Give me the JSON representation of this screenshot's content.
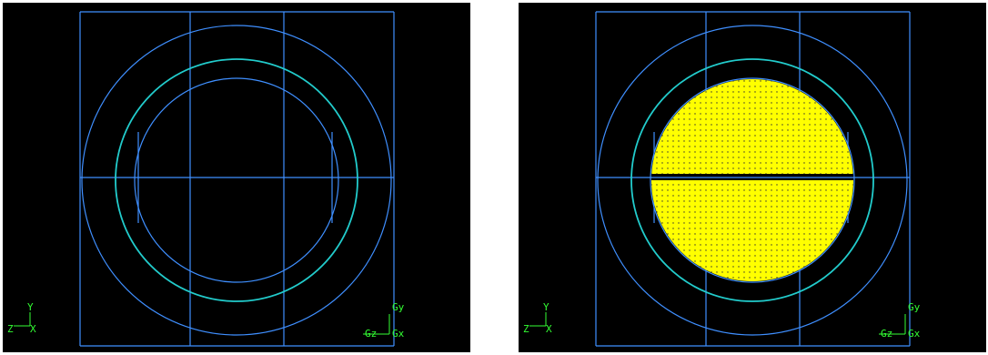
{
  "panels": [
    {
      "axes": {
        "y": "Y",
        "z": "Z",
        "x": "X",
        "gy": "Gy",
        "gz": "Gz",
        "gx": "Gx"
      }
    },
    {
      "axes": {
        "y": "Y",
        "z": "Z",
        "x": "X",
        "gy": "Gy",
        "gz": "Gz",
        "gx": "Gx"
      }
    }
  ]
}
